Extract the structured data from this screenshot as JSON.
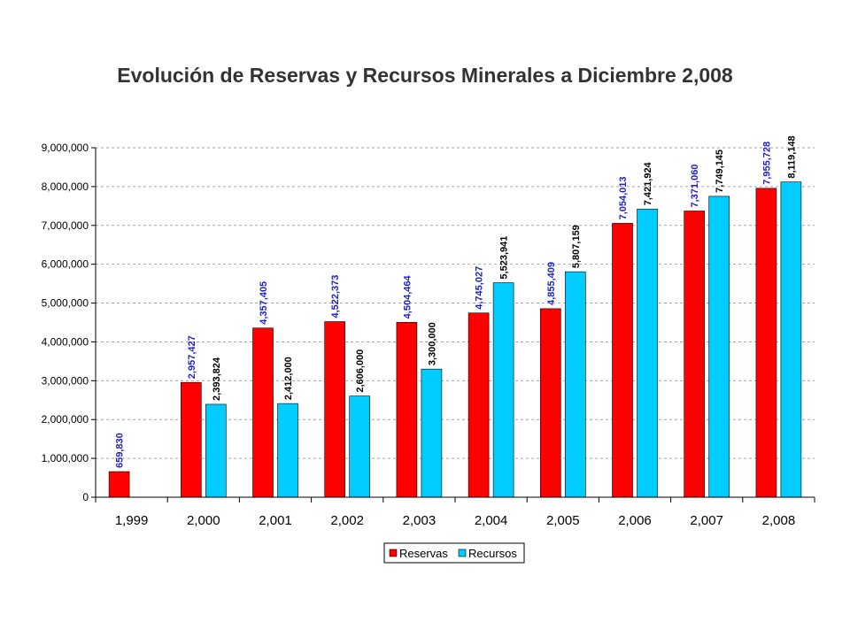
{
  "chart_data": {
    "type": "bar",
    "title": "Evolución de Reservas y Recursos Minerales a Diciembre 2,008",
    "xlabel": "",
    "ylabel": "",
    "categories": [
      "1,999",
      "2,000",
      "2,001",
      "2,002",
      "2,003",
      "2,004",
      "2,005",
      "2,006",
      "2,007",
      "2,008"
    ],
    "ylim": [
      0,
      9000000
    ],
    "y_ticks": [
      "0",
      "1,000,000",
      "2,000,000",
      "3,000,000",
      "4,000,000",
      "5,000,000",
      "6,000,000",
      "7,000,000",
      "8,000,000",
      "9,000,000"
    ],
    "y_tick_values": [
      0,
      1000000,
      2000000,
      3000000,
      4000000,
      5000000,
      6000000,
      7000000,
      8000000,
      9000000
    ],
    "grid": true,
    "legend_position": "bottom",
    "series": [
      {
        "name": "Reservas",
        "color": "#ff0000",
        "label_color": "#1f1fcc",
        "values": [
          659830,
          2957427,
          4357405,
          4522373,
          4504464,
          4745027,
          4855409,
          7054013,
          7371060,
          7955728
        ],
        "labels": [
          "659,830",
          "2,957,427",
          "4,357,405",
          "4,522,373",
          "4,504,464",
          "4,745,027",
          "4,855,409",
          "7,054,013",
          "7,371,060",
          "7,955,728"
        ]
      },
      {
        "name": "Recursos",
        "color": "#00ccff",
        "label_color": "#000000",
        "values": [
          null,
          2393824,
          2412000,
          2606000,
          3300000,
          5523941,
          5807159,
          7421924,
          7749145,
          8119148
        ],
        "labels": [
          "",
          "2,393,824",
          "2,412,000",
          "2,606,000",
          "3,300,000",
          "5,523,941",
          "5,807,159",
          "7,421,924",
          "7,749,145",
          "8,119,148"
        ]
      }
    ]
  }
}
